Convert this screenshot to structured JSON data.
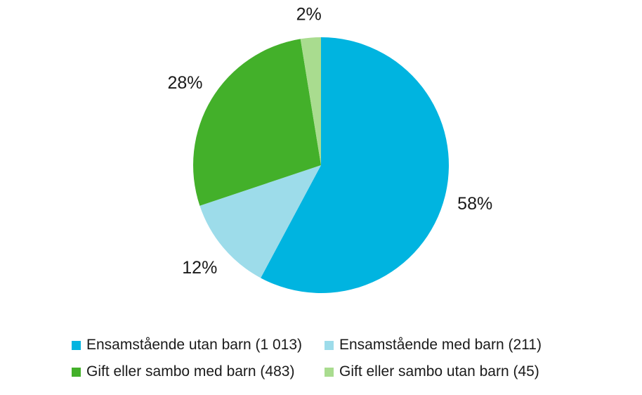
{
  "chart_data": {
    "type": "pie",
    "title": "",
    "slices": [
      {
        "label": "Ensamstående utan barn (1 013)",
        "value": 1013,
        "pct_label": "58%",
        "color": "#00b4e0"
      },
      {
        "label": "Ensamstående med barn (211)",
        "value": 211,
        "pct_label": "12%",
        "color": "#9ddcea"
      },
      {
        "label": "Gift eller sambo med barn (483)",
        "value": 483,
        "pct_label": "28%",
        "color": "#43b02a"
      },
      {
        "label": "Gift eller sambo utan barn (45)",
        "value": 45,
        "pct_label": "2%",
        "color": "#a9dc8f"
      }
    ],
    "start_angle_deg": 0,
    "direction": "clockwise",
    "legend_position": "bottom"
  }
}
